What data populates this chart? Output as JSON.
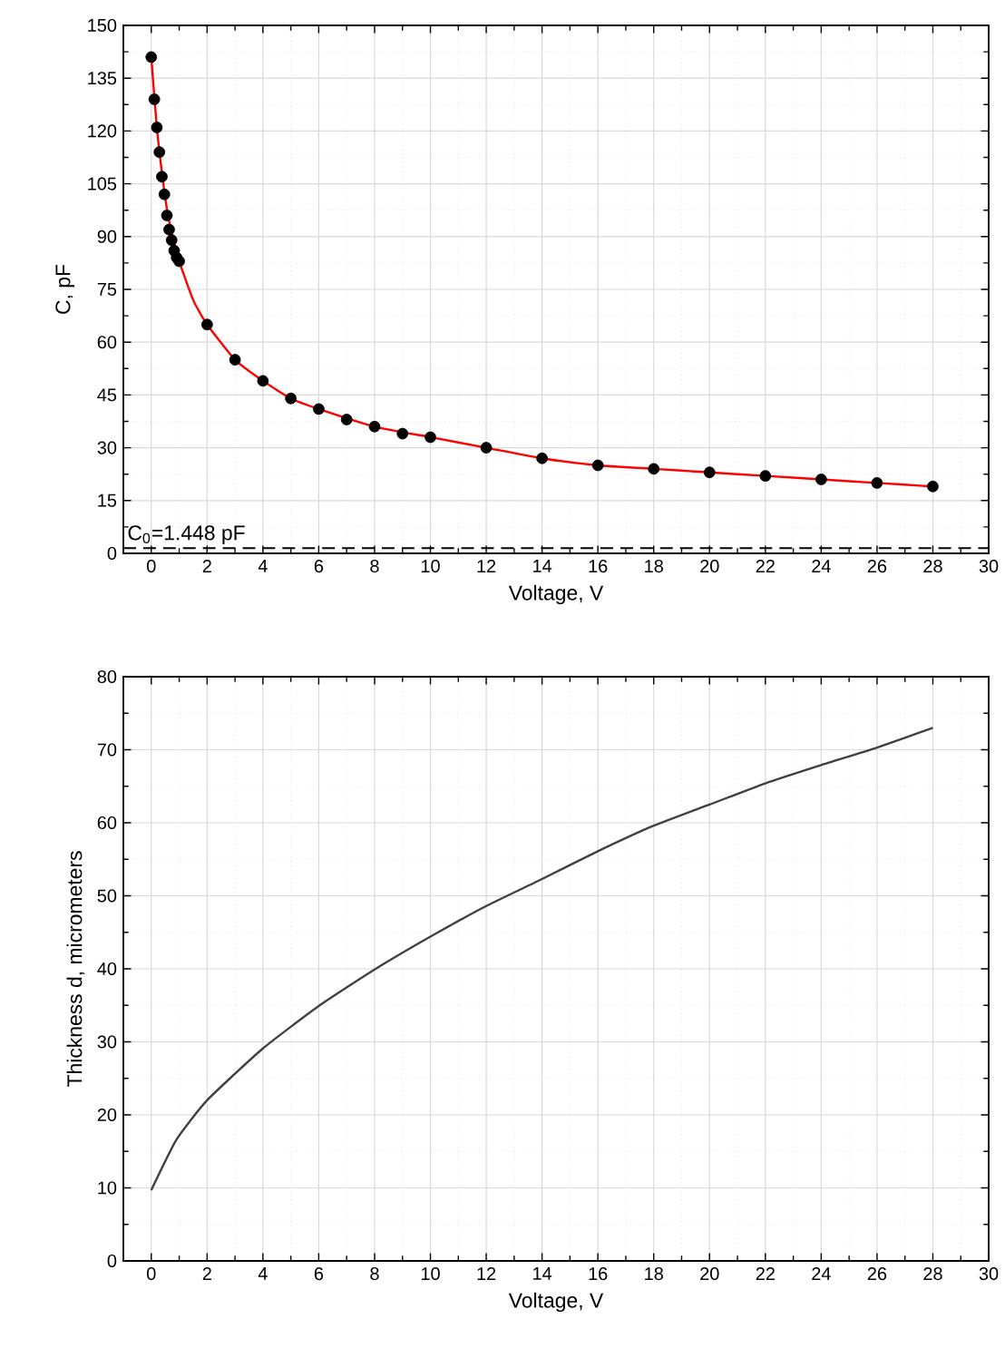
{
  "chart_data": [
    {
      "type": "scatter",
      "xlabel": "Voltage, V",
      "ylabel": "C, pF",
      "xlim": [
        -1,
        30
      ],
      "ylim": [
        0,
        150
      ],
      "xticks": [
        0,
        2,
        4,
        6,
        8,
        10,
        12,
        14,
        16,
        18,
        20,
        22,
        24,
        26,
        28,
        30
      ],
      "yticks": [
        0,
        15,
        30,
        45,
        60,
        75,
        90,
        105,
        120,
        135,
        150
      ],
      "grid": true,
      "series": [
        {
          "marker": "circle",
          "color": "#000000",
          "x": [
            0,
            0.11,
            0.2,
            0.29,
            0.38,
            0.47,
            0.56,
            0.64,
            0.73,
            0.82,
            0.91,
            1.0,
            2,
            3,
            4,
            5,
            6,
            7,
            8,
            9,
            10,
            12,
            14,
            16,
            18,
            20,
            22,
            24,
            26,
            28
          ],
          "values": [
            141,
            129,
            121,
            114,
            107,
            102,
            96,
            92,
            89,
            86,
            84,
            83,
            65,
            55,
            49,
            44,
            41,
            38,
            36,
            34,
            33,
            30,
            27,
            25,
            24,
            23,
            22,
            21,
            20,
            19
          ]
        },
        {
          "type": "line",
          "color": "#ff0000",
          "x": [
            0,
            0.2,
            0.4,
            0.6,
            0.8,
            1.0,
            1.5,
            2,
            3,
            4,
            5,
            6,
            8,
            10,
            12,
            14,
            16,
            18,
            20,
            22,
            24,
            26,
            28
          ],
          "values": [
            141,
            121,
            107,
            96,
            89,
            83,
            72,
            65,
            55,
            49,
            44,
            41,
            36,
            33,
            30,
            27,
            25,
            24,
            23,
            22,
            21,
            20,
            19
          ]
        }
      ],
      "ref_lines": [
        {
          "axis": "y",
          "value": 1.448,
          "label": "C$_{0}$=1.448 pF",
          "color": "#000000",
          "line_style": "dashed"
        }
      ]
    },
    {
      "type": "line",
      "xlabel": "Voltage, V",
      "ylabel": "Thickness d, micrometers",
      "xlim": [
        -1,
        30
      ],
      "ylim": [
        0,
        80
      ],
      "xticks": [
        0,
        2,
        4,
        6,
        8,
        10,
        12,
        14,
        16,
        18,
        20,
        22,
        24,
        26,
        28,
        30
      ],
      "yticks": [
        0,
        10,
        20,
        30,
        40,
        50,
        60,
        70,
        80
      ],
      "grid": true,
      "series": [
        {
          "color": "#404040",
          "x": [
            0,
            0.9,
            2,
            4,
            6,
            8,
            10,
            12,
            14,
            16,
            18,
            20,
            22,
            24,
            26,
            28
          ],
          "values": [
            9.7,
            16.6,
            22.0,
            29.1,
            34.9,
            39.9,
            44.4,
            48.6,
            52.3,
            56.1,
            59.6,
            62.5,
            65.4,
            67.9,
            70.3,
            73
          ]
        }
      ]
    }
  ]
}
